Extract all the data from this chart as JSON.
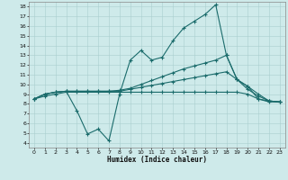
{
  "title": "",
  "xlabel": "Humidex (Indice chaleur)",
  "ylabel": "",
  "bg_color": "#ceeaea",
  "grid_color": "#aacece",
  "line_color": "#1a6b6b",
  "xlim": [
    -0.5,
    23.5
  ],
  "ylim": [
    3.5,
    18.5
  ],
  "xticks": [
    0,
    1,
    2,
    3,
    4,
    5,
    6,
    7,
    8,
    9,
    10,
    11,
    12,
    13,
    14,
    15,
    16,
    17,
    18,
    19,
    20,
    21,
    22,
    23
  ],
  "yticks": [
    4,
    5,
    6,
    7,
    8,
    9,
    10,
    11,
    12,
    13,
    14,
    15,
    16,
    17,
    18
  ],
  "line1_x": [
    0,
    1,
    2,
    3,
    4,
    5,
    6,
    7,
    8,
    9,
    10,
    11,
    12,
    13,
    14,
    15,
    16,
    17,
    18,
    19,
    20,
    21,
    22,
    23
  ],
  "line1_y": [
    8.5,
    9.0,
    9.2,
    9.3,
    7.3,
    4.9,
    5.4,
    4.2,
    9.0,
    12.5,
    13.5,
    12.5,
    12.8,
    14.5,
    15.8,
    16.5,
    17.2,
    18.2,
    13.0,
    10.5,
    9.8,
    8.5,
    8.3,
    8.2
  ],
  "line2_x": [
    0,
    1,
    2,
    3,
    4,
    5,
    6,
    7,
    8,
    9,
    10,
    11,
    12,
    13,
    14,
    15,
    16,
    17,
    18,
    19,
    20,
    21,
    22,
    23
  ],
  "line2_y": [
    8.5,
    9.0,
    9.2,
    9.3,
    9.3,
    9.3,
    9.3,
    9.3,
    9.4,
    9.6,
    10.0,
    10.4,
    10.8,
    11.2,
    11.6,
    11.9,
    12.2,
    12.5,
    13.0,
    10.5,
    9.8,
    9.0,
    8.3,
    8.2
  ],
  "line3_x": [
    0,
    1,
    2,
    3,
    4,
    5,
    6,
    7,
    8,
    9,
    10,
    11,
    12,
    13,
    14,
    15,
    16,
    17,
    18,
    19,
    20,
    21,
    22,
    23
  ],
  "line3_y": [
    8.5,
    9.0,
    9.2,
    9.3,
    9.3,
    9.3,
    9.3,
    9.3,
    9.3,
    9.5,
    9.7,
    9.9,
    10.1,
    10.3,
    10.5,
    10.7,
    10.9,
    11.1,
    11.3,
    10.5,
    9.5,
    8.8,
    8.3,
    8.2
  ],
  "line4_x": [
    0,
    1,
    2,
    3,
    4,
    5,
    6,
    7,
    8,
    9,
    10,
    11,
    12,
    13,
    14,
    15,
    16,
    17,
    18,
    19,
    20,
    21,
    22,
    23
  ],
  "line4_y": [
    8.5,
    8.8,
    9.0,
    9.2,
    9.2,
    9.2,
    9.2,
    9.2,
    9.2,
    9.2,
    9.2,
    9.2,
    9.2,
    9.2,
    9.2,
    9.2,
    9.2,
    9.2,
    9.2,
    9.2,
    9.0,
    8.5,
    8.2,
    8.2
  ]
}
